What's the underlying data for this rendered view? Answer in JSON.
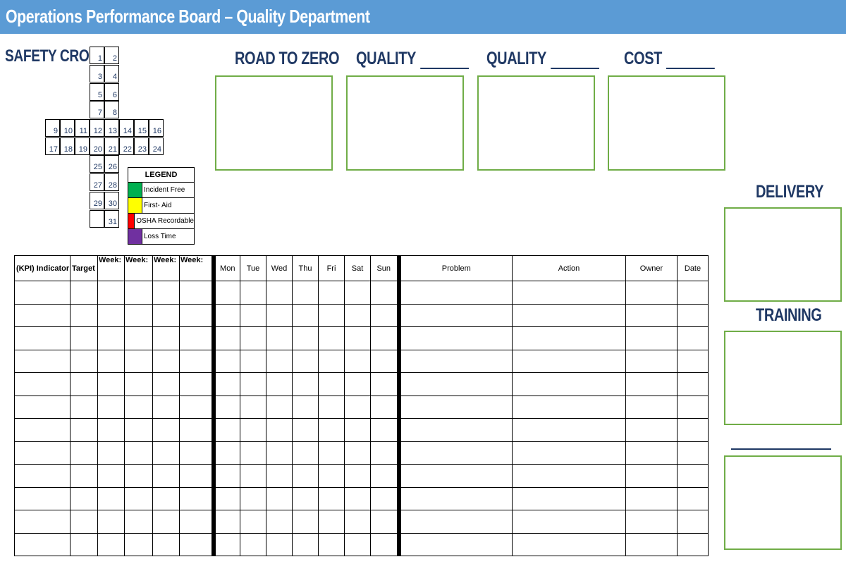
{
  "header": {
    "title": "Operations Performance Board – Quality Department"
  },
  "safety_cross": {
    "title": "SAFETY CROSS",
    "days": [
      "1",
      "2",
      "3",
      "4",
      "5",
      "6",
      "7",
      "8",
      "9",
      "10",
      "11",
      "12",
      "13",
      "14",
      "15",
      "16",
      "17",
      "18",
      "19",
      "20",
      "21",
      "22",
      "23",
      "24",
      "25",
      "26",
      "27",
      "28",
      "29",
      "30",
      "31"
    ]
  },
  "legend": {
    "title": "LEGEND",
    "items": [
      {
        "label": "Incident Free",
        "color": "#00b050"
      },
      {
        "label": "First- Aid",
        "color": "#ffff00"
      },
      {
        "label": "OSHA Recordable",
        "color": "#ff0000"
      },
      {
        "label": "Loss Time",
        "color": "#7030a0"
      }
    ]
  },
  "metrics": {
    "road_to_zero": "ROAD TO ZERO",
    "quality_1": "QUALITY",
    "quality_2": "QUALITY",
    "cost": "COST",
    "delivery": "DELIVERY",
    "training": "TRAINING"
  },
  "table": {
    "headers": {
      "kpi": "(KPI) Indicator",
      "target": "Target",
      "week1": "Week:",
      "week2": "Week:",
      "week3": "Week:",
      "week4": "Week:",
      "mon": "Mon",
      "tue": "Tue",
      "wed": "Wed",
      "thu": "Thu",
      "fri": "Fri",
      "sat": "Sat",
      "sun": "Sun",
      "problem": "Problem",
      "action": "Action",
      "owner": "Owner",
      "date": "Date"
    },
    "row_count": 12
  },
  "colors": {
    "header_bar": "#5b9bd5",
    "heading_text": "#1f3864",
    "box_border": "#70ad47"
  }
}
